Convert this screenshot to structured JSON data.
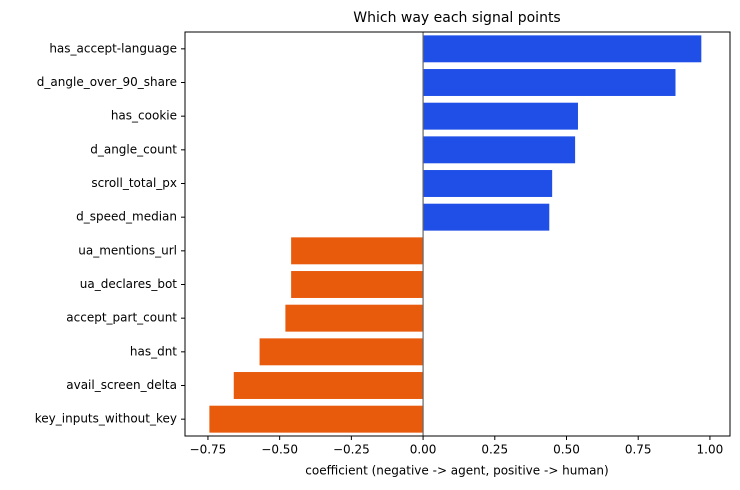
{
  "chart_data": {
    "type": "barh",
    "title": "Which way each signal points",
    "xlabel": "coefficient  (negative -> agent,  positive -> human)",
    "categories": [
      "has_accept-language",
      "d_angle_over_90_share",
      "has_cookie",
      "d_angle_count",
      "scroll_total_px",
      "d_speed_median",
      "ua_mentions_url",
      "ua_declares_bot",
      "accept_part_count",
      "has_dnt",
      "avail_screen_delta",
      "key_inputs_without_key"
    ],
    "values": [
      0.97,
      0.88,
      0.54,
      0.53,
      0.45,
      0.44,
      -0.46,
      -0.46,
      -0.48,
      -0.57,
      -0.66,
      -0.745
    ],
    "colors": [
      "#1f4fe6",
      "#1f4fe6",
      "#1f4fe6",
      "#1f4fe6",
      "#1f4fe6",
      "#1f4fe6",
      "#e85a0c",
      "#e85a0c",
      "#e85a0c",
      "#e85a0c",
      "#e85a0c",
      "#e85a0c"
    ],
    "xlim": [
      -0.83,
      1.07
    ],
    "xticks": [
      {
        "value": -0.75,
        "label": "−0.75"
      },
      {
        "value": -0.5,
        "label": "−0.50"
      },
      {
        "value": -0.25,
        "label": "−0.25"
      },
      {
        "value": 0,
        "label": "0.00"
      },
      {
        "value": 0.25,
        "label": "0.25"
      },
      {
        "value": 0.5,
        "label": "0.50"
      },
      {
        "value": 0.75,
        "label": "0.75"
      },
      {
        "value": 1,
        "label": "1.00"
      }
    ],
    "zero_line": true
  }
}
